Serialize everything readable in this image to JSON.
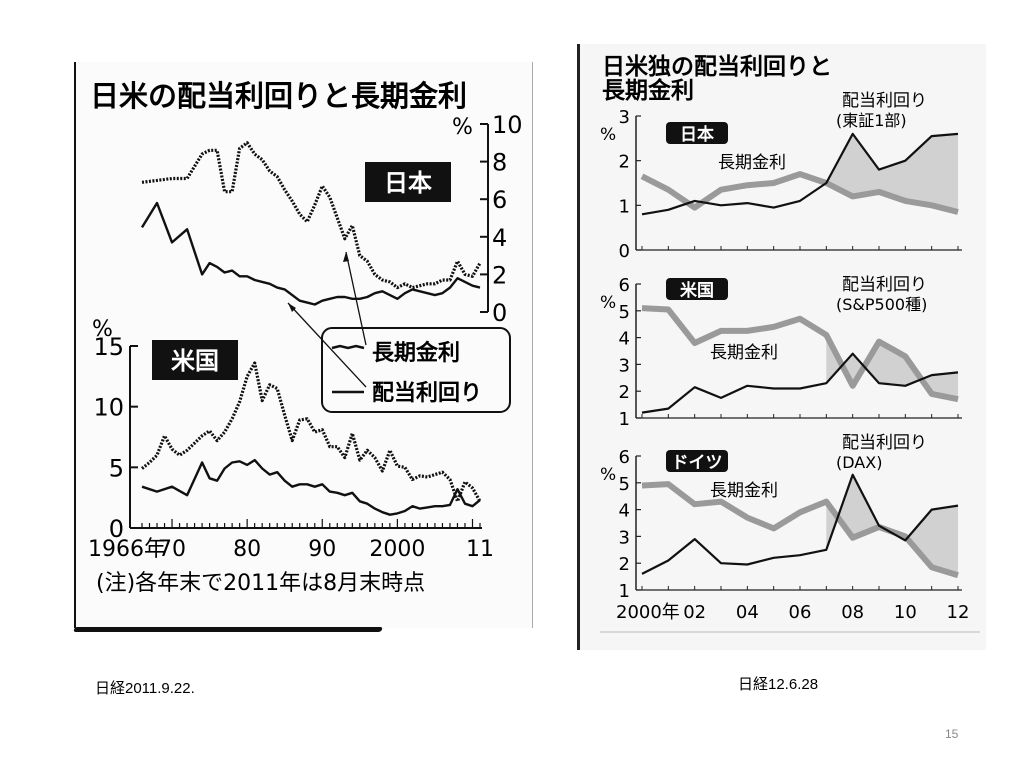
{
  "slide": {
    "caption_left": "日経2011.9.22.",
    "caption_right": "日経12.6.28",
    "page_number": "15"
  },
  "left_figure": {
    "title": "日米の配当利回りと長期金利",
    "note": "(注)各年末で2011年は8月末時点",
    "legend": {
      "long_rate": "長期金利",
      "dividend": "配当利回り"
    },
    "colors": {
      "ink": "#111111"
    }
  },
  "right_figure": {
    "title_line1": "日米独の配当利回りと",
    "title_line2": "長期金利",
    "colors": {
      "ink": "#111111",
      "gray_line": "#9a9a9a",
      "fill": "#c4c4c4"
    }
  },
  "chart_data": [
    {
      "type": "line",
      "panel": "日本",
      "x_ticks": [
        "1966年",
        "70",
        "80",
        "90",
        "2000",
        "11"
      ],
      "y_unit": "%",
      "ylim": [
        0,
        10
      ],
      "y_ticks": [
        "0",
        "2",
        "4",
        "6",
        "8",
        "10"
      ],
      "series": [
        {
          "name": "長期金利",
          "x": [
            1966,
            1968,
            1970,
            1972,
            1974,
            1975,
            1976,
            1977,
            1978,
            1979,
            1980,
            1981,
            1982,
            1983,
            1984,
            1985,
            1986,
            1987,
            1988,
            1989,
            1990,
            1991,
            1992,
            1993,
            1994,
            1995,
            1996,
            1997,
            1998,
            1999,
            2000,
            2001,
            2002,
            2003,
            2004,
            2005,
            2006,
            2007,
            2008,
            2009,
            2010,
            2011
          ],
          "values": [
            6.9,
            7.0,
            7.1,
            7.1,
            8.4,
            8.6,
            8.6,
            6.4,
            6.4,
            8.7,
            9.0,
            8.4,
            8.1,
            7.5,
            7.2,
            6.5,
            5.9,
            5.2,
            4.8,
            5.7,
            6.7,
            6.1,
            5.0,
            3.9,
            4.6,
            3.0,
            2.7,
            2.0,
            1.7,
            1.6,
            1.3,
            1.5,
            1.3,
            1.4,
            1.5,
            1.5,
            1.7,
            1.7,
            2.7,
            2.0,
            1.9,
            2.6
          ]
        },
        {
          "name": "配当利回り",
          "x": [
            1966,
            1968,
            1970,
            1972,
            1974,
            1975,
            1976,
            1977,
            1978,
            1979,
            1980,
            1981,
            1982,
            1983,
            1984,
            1985,
            1986,
            1987,
            1988,
            1989,
            1990,
            1991,
            1992,
            1993,
            1994,
            1995,
            1996,
            1997,
            1998,
            1999,
            2000,
            2001,
            2002,
            2003,
            2004,
            2005,
            2006,
            2007,
            2008,
            2009,
            2010,
            2011
          ],
          "values": [
            4.5,
            5.8,
            3.7,
            4.4,
            2.0,
            2.6,
            2.4,
            2.1,
            2.2,
            1.9,
            1.9,
            1.7,
            1.6,
            1.5,
            1.3,
            1.2,
            0.9,
            0.6,
            0.5,
            0.4,
            0.6,
            0.7,
            0.8,
            0.8,
            0.7,
            0.7,
            0.8,
            1.0,
            1.1,
            0.9,
            0.7,
            1.0,
            1.2,
            1.1,
            1.0,
            0.9,
            1.0,
            1.3,
            1.8,
            1.6,
            1.4,
            1.3
          ]
        }
      ]
    },
    {
      "type": "line",
      "panel": "米国",
      "x_ticks": [
        "1966年",
        "70",
        "80",
        "90",
        "2000",
        "11"
      ],
      "y_unit": "%",
      "ylim": [
        0,
        15
      ],
      "y_ticks": [
        "0",
        "5",
        "10",
        "15"
      ],
      "series": [
        {
          "name": "長期金利",
          "x": [
            1966,
            1967,
            1968,
            1969,
            1970,
            1971,
            1972,
            1973,
            1974,
            1975,
            1976,
            1977,
            1978,
            1979,
            1980,
            1981,
            1982,
            1983,
            1984,
            1985,
            1986,
            1987,
            1988,
            1989,
            1990,
            1991,
            1992,
            1993,
            1994,
            1995,
            1996,
            1997,
            1998,
            1999,
            2000,
            2001,
            2002,
            2003,
            2004,
            2005,
            2006,
            2007,
            2008,
            2009,
            2010,
            2011
          ],
          "values": [
            4.9,
            5.4,
            6.0,
            7.6,
            6.5,
            6.0,
            6.4,
            7.0,
            7.6,
            8.0,
            7.2,
            7.9,
            9.0,
            10.4,
            12.5,
            13.6,
            10.5,
            11.8,
            11.5,
            9.3,
            7.2,
            8.9,
            9.0,
            7.9,
            8.1,
            6.7,
            6.7,
            5.8,
            7.8,
            5.6,
            6.4,
            5.8,
            4.7,
            6.4,
            5.1,
            5.0,
            4.0,
            4.3,
            4.2,
            4.4,
            4.6,
            4.0,
            2.2,
            3.8,
            3.3,
            2.2
          ]
        },
        {
          "name": "配当利回り",
          "x": [
            1966,
            1968,
            1970,
            1972,
            1974,
            1975,
            1976,
            1977,
            1978,
            1979,
            1980,
            1981,
            1982,
            1983,
            1984,
            1985,
            1986,
            1987,
            1988,
            1989,
            1990,
            1991,
            1992,
            1993,
            1994,
            1995,
            1996,
            1997,
            1998,
            1999,
            2000,
            2001,
            2002,
            2003,
            2004,
            2005,
            2006,
            2007,
            2008,
            2009,
            2010,
            2011
          ],
          "values": [
            3.4,
            3.0,
            3.4,
            2.7,
            5.4,
            4.1,
            3.9,
            4.9,
            5.4,
            5.5,
            5.2,
            5.6,
            4.9,
            4.4,
            4.6,
            3.9,
            3.4,
            3.6,
            3.6,
            3.4,
            3.6,
            3.0,
            2.9,
            2.7,
            2.9,
            2.2,
            2.0,
            1.6,
            1.3,
            1.1,
            1.2,
            1.4,
            1.8,
            1.6,
            1.7,
            1.8,
            1.8,
            1.9,
            3.2,
            2.0,
            1.8,
            2.3
          ]
        }
      ]
    },
    {
      "type": "area",
      "panel": "日本",
      "x": [
        2000,
        2001,
        2002,
        2003,
        2004,
        2005,
        2006,
        2007,
        2008,
        2009,
        2010,
        2011,
        2012
      ],
      "x_ticks": [
        "2000年",
        "02",
        "04",
        "06",
        "08",
        "10",
        "12"
      ],
      "y_unit": "%",
      "ylim": [
        0,
        3
      ],
      "y_ticks": [
        "0",
        "1",
        "2",
        "3"
      ],
      "series": [
        {
          "name": "長期金利",
          "values": [
            1.65,
            1.35,
            0.95,
            1.35,
            1.45,
            1.5,
            1.7,
            1.5,
            1.2,
            1.3,
            1.1,
            1.0,
            0.85
          ]
        },
        {
          "name": "配当利回り(東証1部)",
          "values": [
            0.8,
            0.9,
            1.1,
            1.0,
            1.05,
            0.95,
            1.1,
            1.5,
            2.6,
            1.8,
            2.0,
            2.55,
            2.6
          ]
        }
      ]
    },
    {
      "type": "area",
      "panel": "米国",
      "x": [
        2000,
        2001,
        2002,
        2003,
        2004,
        2005,
        2006,
        2007,
        2008,
        2009,
        2010,
        2011,
        2012
      ],
      "x_ticks": [
        "2000年",
        "02",
        "04",
        "06",
        "08",
        "10",
        "12"
      ],
      "y_unit": "%",
      "ylim": [
        1,
        6
      ],
      "y_ticks": [
        "1",
        "2",
        "3",
        "4",
        "5",
        "6"
      ],
      "series": [
        {
          "name": "長期金利",
          "values": [
            5.1,
            5.05,
            3.8,
            4.25,
            4.25,
            4.4,
            4.7,
            4.1,
            2.2,
            3.85,
            3.3,
            1.9,
            1.7
          ]
        },
        {
          "name": "配当利回り(S&P500種)",
          "values": [
            1.2,
            1.35,
            2.15,
            1.75,
            2.2,
            2.1,
            2.1,
            2.3,
            3.4,
            2.3,
            2.2,
            2.6,
            2.7
          ]
        }
      ]
    },
    {
      "type": "area",
      "panel": "ドイツ",
      "x": [
        2000,
        2001,
        2002,
        2003,
        2004,
        2005,
        2006,
        2007,
        2008,
        2009,
        2010,
        2011,
        2012
      ],
      "x_ticks": [
        "2000年",
        "02",
        "04",
        "06",
        "08",
        "10",
        "12"
      ],
      "y_unit": "%",
      "ylim": [
        1,
        6
      ],
      "y_ticks": [
        "1",
        "2",
        "3",
        "4",
        "5",
        "6"
      ],
      "series": [
        {
          "name": "長期金利",
          "values": [
            4.9,
            4.95,
            4.2,
            4.3,
            3.7,
            3.3,
            3.9,
            4.3,
            2.95,
            3.35,
            3.0,
            1.85,
            1.55
          ]
        },
        {
          "name": "配当利回り(DAX)",
          "values": [
            1.6,
            2.1,
            2.9,
            2.0,
            1.95,
            2.2,
            2.3,
            2.5,
            5.3,
            3.4,
            2.85,
            4.0,
            4.15
          ]
        }
      ]
    }
  ]
}
